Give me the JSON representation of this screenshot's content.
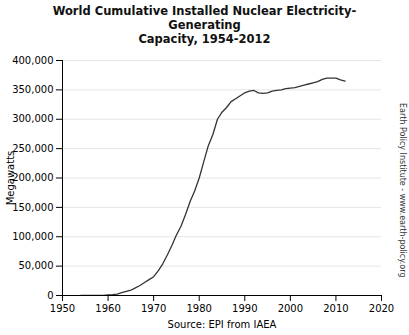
{
  "chart_data": {
    "type": "line",
    "title": "World Cumulative Installed Nuclear Electricity-Generating\nCapacity, 1954-2012",
    "xlabel": "Source: EPI from IAEA",
    "ylabel": "Megawatts",
    "annotations": [
      "Earth Policy Institute - www.earth-policy.org"
    ],
    "color": "#333333",
    "x": [
      1954,
      1955,
      1956,
      1957,
      1958,
      1959,
      1960,
      1961,
      1962,
      1963,
      1964,
      1965,
      1966,
      1967,
      1968,
      1969,
      1970,
      1971,
      1972,
      1973,
      1974,
      1975,
      1976,
      1977,
      1978,
      1979,
      1980,
      1981,
      1982,
      1983,
      1984,
      1985,
      1986,
      1987,
      1988,
      1989,
      1990,
      1991,
      1992,
      1993,
      1994,
      1995,
      1996,
      1997,
      1998,
      1999,
      2000,
      2001,
      2002,
      2003,
      2004,
      2005,
      2006,
      2007,
      2008,
      2009,
      2010,
      2011,
      2012
    ],
    "values": [
      0,
      0,
      0,
      0,
      0,
      0,
      1000,
      1500,
      2500,
      5000,
      7000,
      9000,
      13000,
      17000,
      22000,
      27000,
      32000,
      42000,
      54000,
      69000,
      85000,
      103000,
      118000,
      138000,
      160000,
      178000,
      200000,
      228000,
      255000,
      274000,
      300000,
      312000,
      320000,
      330000,
      335000,
      340000,
      345000,
      348000,
      349000,
      345000,
      344000,
      345000,
      348000,
      349000,
      350000,
      352000,
      353000,
      354000,
      356000,
      358000,
      360000,
      362000,
      364000,
      368000,
      370000,
      370000,
      370000,
      367000,
      365000
    ],
    "xlim": [
      1950,
      2020
    ],
    "xticks": [
      1950,
      1960,
      1970,
      1980,
      1990,
      2000,
      2010,
      2020
    ],
    "ylim": [
      0,
      400000
    ],
    "yticks": [
      0,
      {
        "value": 50000,
        "label": "50,000"
      },
      {
        "value": 100000,
        "label": "100,000"
      },
      {
        "value": 150000,
        "label": "150,000"
      },
      {
        "value": 200000,
        "label": "200,000"
      },
      {
        "value": 250000,
        "label": "250,000"
      },
      {
        "value": 300000,
        "label": "300,000"
      },
      {
        "value": 350000,
        "label": "350,000"
      },
      {
        "value": 400000,
        "label": "400,000"
      }
    ],
    "grid": true
  }
}
